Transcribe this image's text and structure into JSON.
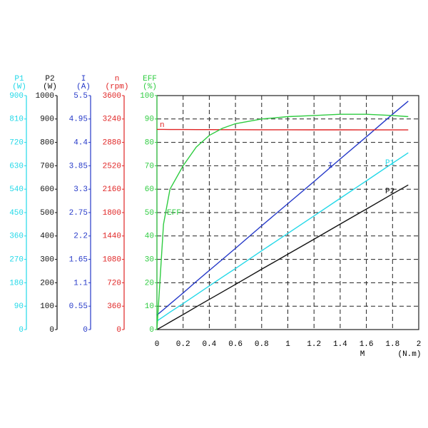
{
  "chart_data": {
    "type": "line",
    "x_label": "M",
    "x_unit": "(N.m)",
    "xlim": [
      0,
      2
    ],
    "xticks": [
      0,
      0.2,
      0.4,
      0.6,
      0.8,
      1,
      1.2,
      1.4,
      1.6,
      1.8,
      2
    ],
    "grid": true,
    "axes": [
      {
        "name": "P1",
        "unit": "(W)",
        "color": "#22d8e8",
        "lim": [
          0,
          900
        ],
        "ticks": [
          0,
          90,
          180,
          270,
          360,
          450,
          540,
          630,
          720,
          810,
          900
        ]
      },
      {
        "name": "P2",
        "unit": "(W)",
        "color": "#111111",
        "lim": [
          0,
          1000
        ],
        "ticks": [
          0,
          100,
          200,
          300,
          400,
          500,
          600,
          700,
          800,
          900,
          1000
        ]
      },
      {
        "name": "I",
        "unit": "(A)",
        "color": "#2438c8",
        "lim": [
          0,
          5.5
        ],
        "ticks": [
          0,
          0.55,
          1.1,
          1.65,
          2.2,
          2.75,
          3.3,
          3.85,
          4.4,
          4.95,
          5.5
        ]
      },
      {
        "name": "n",
        "unit": "(rpm)",
        "color": "#e02424",
        "lim": [
          0,
          3600
        ],
        "ticks": [
          0,
          360,
          720,
          1080,
          1440,
          1800,
          2160,
          2520,
          2880,
          3240,
          3600
        ]
      },
      {
        "name": "EFF",
        "unit": "(%)",
        "color": "#2ecc40",
        "lim": [
          0,
          100
        ],
        "ticks": [
          0,
          10,
          20,
          30,
          40,
          50,
          60,
          70,
          80,
          90,
          100
        ]
      }
    ],
    "x": [
      0,
      0.05,
      0.1,
      0.2,
      0.3,
      0.4,
      0.5,
      0.6,
      0.8,
      1,
      1.2,
      1.4,
      1.6,
      1.8,
      1.92
    ],
    "series": [
      {
        "name": "P1",
        "color": "#22d8e8",
        "axis": 0,
        "values": [
          33,
          50,
          67,
          100,
          134,
          168,
          202,
          235,
          303,
          370,
          437,
          505,
          572,
          640,
          680
        ]
      },
      {
        "name": "P2",
        "color": "#111111",
        "axis": 1,
        "values": [
          0,
          16,
          32,
          64,
          97,
          129,
          161,
          193,
          258,
          322,
          386,
          451,
          515,
          580,
          618
        ]
      },
      {
        "name": "I",
        "color": "#2438c8",
        "axis": 2,
        "values": [
          0.34,
          0.47,
          0.6,
          0.86,
          1.13,
          1.39,
          1.65,
          1.91,
          2.44,
          2.96,
          3.48,
          4.01,
          4.53,
          5.06,
          5.37
        ]
      },
      {
        "name": "n",
        "color": "#e02424",
        "axis": 3,
        "values": [
          3080,
          3080,
          3078,
          3078,
          3076,
          3076,
          3075,
          3075,
          3074,
          3074,
          3073,
          3073,
          3072,
          3072,
          3072
        ]
      },
      {
        "name": "EFF",
        "color": "#2ecc40",
        "axis": 4,
        "values": [
          0,
          45,
          60,
          70,
          78,
          83,
          86,
          88,
          90,
          91,
          91.5,
          92,
          92,
          91.5,
          91
        ]
      }
    ]
  }
}
